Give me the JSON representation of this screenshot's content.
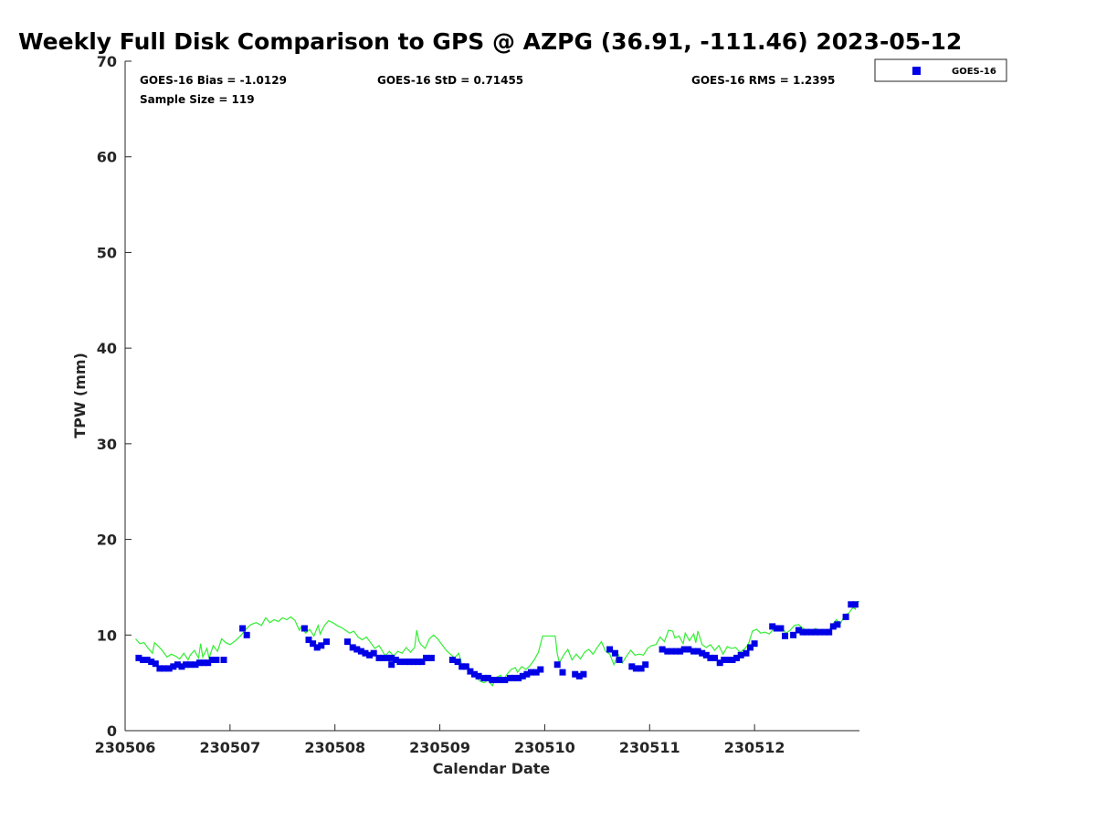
{
  "chart_data": {
    "type": "scatter",
    "title": "Weekly Full Disk Comparison to GPS @ AZPG (36.91, -111.46) 2023-05-12",
    "xlabel": "Calendar Date",
    "ylabel": "TPW (mm)",
    "ylim": [
      0,
      70
    ],
    "xlim": [
      0,
      7
    ],
    "yticks": [
      0,
      10,
      20,
      30,
      40,
      50,
      60,
      70
    ],
    "xticks": [
      {
        "value": 0,
        "label": "230506"
      },
      {
        "value": 1,
        "label": "230507"
      },
      {
        "value": 2,
        "label": "230508"
      },
      {
        "value": 3,
        "label": "230509"
      },
      {
        "value": 4,
        "label": "230510"
      },
      {
        "value": 5,
        "label": "230511"
      },
      {
        "value": 6,
        "label": "230512"
      }
    ],
    "grid": false,
    "legend": {
      "position": "top-right",
      "entries": [
        "GOES-16"
      ]
    },
    "stats": {
      "bias": "GOES-16 Bias = -1.0129",
      "std": "GOES-16 StD = 0.71455",
      "rms": "GOES-16 RMS = 1.2395",
      "sample": "Sample Size = 119"
    },
    "colors": {
      "goes": "#0000e6",
      "gps": "#33ee33"
    },
    "series": [
      {
        "name": "GOES-16",
        "marker": "square",
        "points": [
          [
            0.13,
            7.6
          ],
          [
            0.17,
            7.4
          ],
          [
            0.21,
            7.4
          ],
          [
            0.25,
            7.2
          ],
          [
            0.29,
            7.0
          ],
          [
            0.33,
            6.5
          ],
          [
            0.37,
            6.5
          ],
          [
            0.42,
            6.5
          ],
          [
            0.46,
            6.7
          ],
          [
            0.5,
            6.9
          ],
          [
            0.54,
            6.7
          ],
          [
            0.58,
            6.9
          ],
          [
            0.62,
            6.9
          ],
          [
            0.67,
            6.9
          ],
          [
            0.71,
            7.1
          ],
          [
            0.75,
            7.1
          ],
          [
            0.79,
            7.1
          ],
          [
            0.83,
            7.4
          ],
          [
            0.87,
            7.4
          ],
          [
            0.94,
            7.4
          ],
          [
            1.12,
            10.7
          ],
          [
            1.16,
            10.0
          ],
          [
            1.71,
            10.7
          ],
          [
            1.75,
            9.5
          ],
          [
            1.79,
            9.1
          ],
          [
            1.83,
            8.7
          ],
          [
            1.87,
            8.9
          ],
          [
            1.92,
            9.3
          ],
          [
            2.12,
            9.3
          ],
          [
            2.17,
            8.7
          ],
          [
            2.21,
            8.5
          ],
          [
            2.25,
            8.3
          ],
          [
            2.29,
            8.1
          ],
          [
            2.33,
            7.9
          ],
          [
            2.37,
            8.1
          ],
          [
            2.42,
            7.6
          ],
          [
            2.46,
            7.6
          ],
          [
            2.5,
            7.6
          ],
          [
            2.54,
            7.6
          ],
          [
            2.54,
            6.9
          ],
          [
            2.58,
            7.4
          ],
          [
            2.62,
            7.2
          ],
          [
            2.67,
            7.2
          ],
          [
            2.71,
            7.2
          ],
          [
            2.75,
            7.2
          ],
          [
            2.79,
            7.2
          ],
          [
            2.83,
            7.2
          ],
          [
            2.87,
            7.6
          ],
          [
            2.92,
            7.6
          ],
          [
            3.12,
            7.4
          ],
          [
            3.17,
            7.2
          ],
          [
            3.21,
            6.7
          ],
          [
            3.25,
            6.7
          ],
          [
            3.29,
            6.2
          ],
          [
            3.33,
            5.9
          ],
          [
            3.37,
            5.7
          ],
          [
            3.42,
            5.5
          ],
          [
            3.46,
            5.5
          ],
          [
            3.5,
            5.3
          ],
          [
            3.54,
            5.3
          ],
          [
            3.58,
            5.3
          ],
          [
            3.62,
            5.3
          ],
          [
            3.67,
            5.5
          ],
          [
            3.71,
            5.5
          ],
          [
            3.75,
            5.5
          ],
          [
            3.79,
            5.7
          ],
          [
            3.83,
            5.9
          ],
          [
            3.87,
            6.1
          ],
          [
            3.92,
            6.1
          ],
          [
            3.96,
            6.4
          ],
          [
            4.12,
            6.9
          ],
          [
            4.17,
            6.1
          ],
          [
            4.29,
            5.9
          ],
          [
            4.33,
            5.7
          ],
          [
            4.37,
            5.9
          ],
          [
            4.62,
            8.5
          ],
          [
            4.67,
            8.1
          ],
          [
            4.71,
            7.4
          ],
          [
            4.83,
            6.7
          ],
          [
            4.87,
            6.5
          ],
          [
            4.92,
            6.5
          ],
          [
            4.96,
            6.9
          ],
          [
            5.12,
            8.5
          ],
          [
            5.17,
            8.3
          ],
          [
            5.21,
            8.3
          ],
          [
            5.25,
            8.3
          ],
          [
            5.29,
            8.3
          ],
          [
            5.33,
            8.5
          ],
          [
            5.37,
            8.5
          ],
          [
            5.42,
            8.3
          ],
          [
            5.46,
            8.3
          ],
          [
            5.5,
            8.1
          ],
          [
            5.54,
            7.9
          ],
          [
            5.58,
            7.6
          ],
          [
            5.62,
            7.6
          ],
          [
            5.67,
            7.1
          ],
          [
            5.71,
            7.4
          ],
          [
            5.75,
            7.4
          ],
          [
            5.79,
            7.4
          ],
          [
            5.83,
            7.6
          ],
          [
            5.87,
            7.9
          ],
          [
            5.92,
            8.1
          ],
          [
            5.96,
            8.7
          ],
          [
            6.0,
            9.1
          ],
          [
            6.17,
            10.9
          ],
          [
            6.21,
            10.7
          ],
          [
            6.25,
            10.7
          ],
          [
            6.29,
            9.9
          ],
          [
            6.37,
            10.0
          ],
          [
            6.42,
            10.5
          ],
          [
            6.46,
            10.3
          ],
          [
            6.5,
            10.3
          ],
          [
            6.54,
            10.3
          ],
          [
            6.58,
            10.3
          ],
          [
            6.62,
            10.3
          ],
          [
            6.67,
            10.3
          ],
          [
            6.71,
            10.3
          ],
          [
            6.75,
            10.9
          ],
          [
            6.79,
            11.1
          ],
          [
            6.87,
            11.9
          ],
          [
            6.92,
            13.2
          ],
          [
            6.96,
            13.2
          ]
        ]
      },
      {
        "name": "GPS",
        "line": [
          [
            0.1,
            9.6
          ],
          [
            0.14,
            9.1
          ],
          [
            0.18,
            9.2
          ],
          [
            0.22,
            8.6
          ],
          [
            0.26,
            8.1
          ],
          [
            0.28,
            9.2
          ],
          [
            0.32,
            8.8
          ],
          [
            0.36,
            8.3
          ],
          [
            0.4,
            7.7
          ],
          [
            0.44,
            8.0
          ],
          [
            0.48,
            7.8
          ],
          [
            0.52,
            7.5
          ],
          [
            0.56,
            8.1
          ],
          [
            0.6,
            7.4
          ],
          [
            0.62,
            7.9
          ],
          [
            0.66,
            8.4
          ],
          [
            0.7,
            7.6
          ],
          [
            0.72,
            9.1
          ],
          [
            0.74,
            7.7
          ],
          [
            0.78,
            8.6
          ],
          [
            0.8,
            7.6
          ],
          [
            0.84,
            8.9
          ],
          [
            0.88,
            8.3
          ],
          [
            0.92,
            9.6
          ],
          [
            0.96,
            9.2
          ],
          [
            1.0,
            9.0
          ],
          [
            1.05,
            9.4
          ],
          [
            1.1,
            9.9
          ],
          [
            1.15,
            10.6
          ],
          [
            1.2,
            11.1
          ],
          [
            1.25,
            11.3
          ],
          [
            1.3,
            11.0
          ],
          [
            1.34,
            11.8
          ],
          [
            1.38,
            11.3
          ],
          [
            1.42,
            11.6
          ],
          [
            1.46,
            11.4
          ],
          [
            1.5,
            11.8
          ],
          [
            1.54,
            11.6
          ],
          [
            1.58,
            11.9
          ],
          [
            1.62,
            11.5
          ],
          [
            1.66,
            10.5
          ],
          [
            1.68,
            10.9
          ],
          [
            1.72,
            10.2
          ],
          [
            1.76,
            10.6
          ],
          [
            1.8,
            9.9
          ],
          [
            1.84,
            11.0
          ],
          [
            1.86,
            10.1
          ],
          [
            1.9,
            11.0
          ],
          [
            1.94,
            11.5
          ],
          [
            1.98,
            11.3
          ],
          [
            2.02,
            11.0
          ],
          [
            2.06,
            10.8
          ],
          [
            2.1,
            10.5
          ],
          [
            2.14,
            10.2
          ],
          [
            2.18,
            10.4
          ],
          [
            2.22,
            9.8
          ],
          [
            2.26,
            9.5
          ],
          [
            2.3,
            9.8
          ],
          [
            2.34,
            9.2
          ],
          [
            2.38,
            8.6
          ],
          [
            2.42,
            8.9
          ],
          [
            2.46,
            8.2
          ],
          [
            2.48,
            7.8
          ],
          [
            2.52,
            8.3
          ],
          [
            2.56,
            7.8
          ],
          [
            2.6,
            8.3
          ],
          [
            2.64,
            8.1
          ],
          [
            2.68,
            8.7
          ],
          [
            2.72,
            8.2
          ],
          [
            2.76,
            8.7
          ],
          [
            2.78,
            10.5
          ],
          [
            2.8,
            9.4
          ],
          [
            2.82,
            9.0
          ],
          [
            2.86,
            8.6
          ],
          [
            2.9,
            9.6
          ],
          [
            2.94,
            10.0
          ],
          [
            2.98,
            9.6
          ],
          [
            3.02,
            9.0
          ],
          [
            3.06,
            8.4
          ],
          [
            3.1,
            8.0
          ],
          [
            3.14,
            7.6
          ],
          [
            3.18,
            8.1
          ],
          [
            3.22,
            6.6
          ],
          [
            3.26,
            6.9
          ],
          [
            3.3,
            6.2
          ],
          [
            3.34,
            5.7
          ],
          [
            3.38,
            5.2
          ],
          [
            3.42,
            5.0
          ],
          [
            3.46,
            5.3
          ],
          [
            3.5,
            4.7
          ],
          [
            3.54,
            5.6
          ],
          [
            3.58,
            5.8
          ],
          [
            3.6,
            5.2
          ],
          [
            3.64,
            5.9
          ],
          [
            3.68,
            6.4
          ],
          [
            3.72,
            6.6
          ],
          [
            3.74,
            6.1
          ],
          [
            3.78,
            6.7
          ],
          [
            3.82,
            6.4
          ],
          [
            3.86,
            6.8
          ],
          [
            3.9,
            7.4
          ],
          [
            3.94,
            8.2
          ],
          [
            3.98,
            9.9
          ],
          [
            4.04,
            9.9
          ],
          [
            4.1,
            9.9
          ],
          [
            4.12,
            8.0
          ],
          [
            4.14,
            7.1
          ],
          [
            4.18,
            7.9
          ],
          [
            4.22,
            8.5
          ],
          [
            4.26,
            7.4
          ],
          [
            4.3,
            8.0
          ],
          [
            4.34,
            7.5
          ],
          [
            4.38,
            8.2
          ],
          [
            4.42,
            8.5
          ],
          [
            4.46,
            8.0
          ],
          [
            4.5,
            8.7
          ],
          [
            4.54,
            9.3
          ],
          [
            4.58,
            8.3
          ],
          [
            4.62,
            8.0
          ],
          [
            4.66,
            6.9
          ],
          [
            4.7,
            8.0
          ],
          [
            4.74,
            7.1
          ],
          [
            4.78,
            7.8
          ],
          [
            4.82,
            8.4
          ],
          [
            4.86,
            7.9
          ],
          [
            4.9,
            8.0
          ],
          [
            4.94,
            7.9
          ],
          [
            4.98,
            8.6
          ],
          [
            5.02,
            8.9
          ],
          [
            5.06,
            9.0
          ],
          [
            5.1,
            9.8
          ],
          [
            5.14,
            9.3
          ],
          [
            5.18,
            10.5
          ],
          [
            5.22,
            10.4
          ],
          [
            5.24,
            9.7
          ],
          [
            5.28,
            9.9
          ],
          [
            5.32,
            9.1
          ],
          [
            5.34,
            10.2
          ],
          [
            5.38,
            9.4
          ],
          [
            5.42,
            10.1
          ],
          [
            5.44,
            9.2
          ],
          [
            5.46,
            10.4
          ],
          [
            5.5,
            9.0
          ],
          [
            5.54,
            8.7
          ],
          [
            5.58,
            9.0
          ],
          [
            5.62,
            8.4
          ],
          [
            5.66,
            8.9
          ],
          [
            5.7,
            8.0
          ],
          [
            5.74,
            8.8
          ],
          [
            5.78,
            8.6
          ],
          [
            5.82,
            8.7
          ],
          [
            5.86,
            8.2
          ],
          [
            5.9,
            8.5
          ],
          [
            5.94,
            9.0
          ],
          [
            5.98,
            10.4
          ],
          [
            6.02,
            10.6
          ],
          [
            6.06,
            10.2
          ],
          [
            6.1,
            10.3
          ],
          [
            6.14,
            10.1
          ],
          [
            6.18,
            10.6
          ],
          [
            6.22,
            11.0
          ],
          [
            6.26,
            10.8
          ],
          [
            6.3,
            10.2
          ],
          [
            6.34,
            10.5
          ],
          [
            6.38,
            11.0
          ],
          [
            6.42,
            11.1
          ],
          [
            6.46,
            10.7
          ],
          [
            6.5,
            10.5
          ],
          [
            6.54,
            10.3
          ],
          [
            6.58,
            10.7
          ],
          [
            6.62,
            10.4
          ],
          [
            6.66,
            10.6
          ],
          [
            6.7,
            10.3
          ],
          [
            6.74,
            11.1
          ],
          [
            6.78,
            11.6
          ],
          [
            6.82,
            11.2
          ],
          [
            6.86,
            12.1
          ],
          [
            6.9,
            12.3
          ],
          [
            6.94,
            12.9
          ],
          [
            6.96,
            12.7
          ],
          [
            6.98,
            13.5
          ],
          [
            7.0,
            13.5
          ]
        ]
      }
    ]
  }
}
